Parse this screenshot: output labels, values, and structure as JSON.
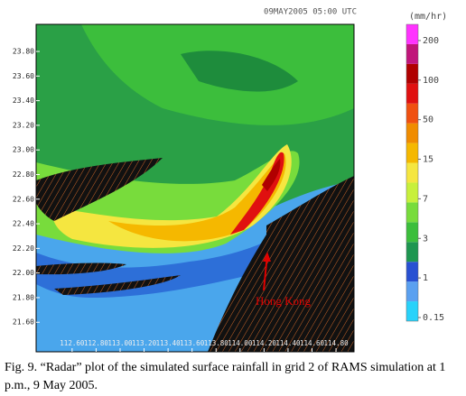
{
  "figure": {
    "timestamp": "09MAY2005 05:00 UTC",
    "unit": "(mm/hr)",
    "annotation": "Hong Kong",
    "xlim": [
      112.3,
      114.95
    ],
    "ylim": [
      21.36,
      24.02
    ],
    "xticks": [
      {
        "value": 112.6,
        "label": "112.60"
      },
      {
        "value": 112.8,
        "label": "112.80"
      },
      {
        "value": 113.0,
        "label": "113.00"
      },
      {
        "value": 113.2,
        "label": "113.20"
      },
      {
        "value": 113.4,
        "label": "113.40"
      },
      {
        "value": 113.6,
        "label": "113.60"
      },
      {
        "value": 113.8,
        "label": "113.80"
      },
      {
        "value": 114.0,
        "label": "114.00"
      },
      {
        "value": 114.2,
        "label": "114.20"
      },
      {
        "value": 114.4,
        "label": "114.40"
      },
      {
        "value": 114.6,
        "label": "114.60"
      },
      {
        "value": 114.8,
        "label": "114.80"
      }
    ],
    "yticks": [
      {
        "value": 21.6,
        "label": "21.60"
      },
      {
        "value": 21.8,
        "label": "21.80"
      },
      {
        "value": 22.0,
        "label": "22.00"
      },
      {
        "value": 22.2,
        "label": "22.20"
      },
      {
        "value": 22.4,
        "label": "22.40"
      },
      {
        "value": 22.6,
        "label": "22.60"
      },
      {
        "value": 22.8,
        "label": "22.80"
      },
      {
        "value": 23.0,
        "label": "23.00"
      },
      {
        "value": 23.2,
        "label": "23.20"
      },
      {
        "value": 23.4,
        "label": "23.40"
      },
      {
        "value": 23.6,
        "label": "23.60"
      },
      {
        "value": 23.8,
        "label": "23.80"
      }
    ],
    "colorbar": {
      "colors": [
        "#28d2fa",
        "#5aa0f0",
        "#2850d2",
        "#1e9650",
        "#3cbe3c",
        "#78dc3c",
        "#c8f03c",
        "#f5e640",
        "#f5b800",
        "#f08c00",
        "#f05010",
        "#e01010",
        "#b00000",
        "#c0157a",
        "#ff33ff"
      ],
      "levels": [
        0.15,
        1,
        3,
        7,
        15,
        50,
        100,
        200
      ]
    }
  },
  "caption": "Fig. 9. “Radar” plot of the simulated surface rainfall in grid 2 of RAMS simulation at 1 p.m., 9 May 2005."
}
